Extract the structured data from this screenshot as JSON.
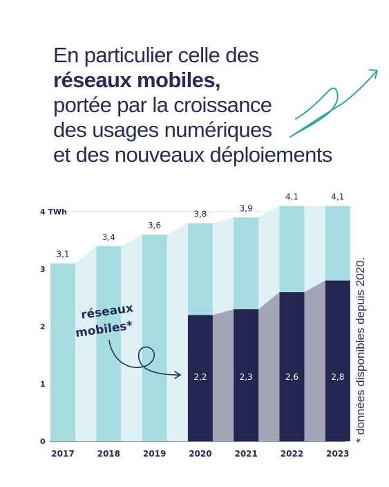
{
  "heading": {
    "line1": "En particulier celle des",
    "line2": "réseaux mobiles,",
    "line3": "portée par la croissance",
    "line4": "des usages numériques",
    "line5": "et des nouveaux déploiements"
  },
  "annotation": {
    "line1": "réseaux",
    "line2": "mobiles*"
  },
  "footnote": "* données disponibles depuis 2020.",
  "colors": {
    "total_bar": "#a7dde0",
    "total_area": "#dff1f4",
    "mobile_bar": "#232651",
    "mobile_area": "#a5a5b8",
    "text": "#262b5a",
    "accent_arrow": "#2aa3a3"
  },
  "chart_data": {
    "type": "bar",
    "title": "",
    "xlabel": "",
    "ylabel": "",
    "ylim": [
      0,
      4
    ],
    "yticks": [
      "0",
      "1",
      "2",
      "3",
      "4 TWh"
    ],
    "categories": [
      "2017",
      "2018",
      "2019",
      "2020",
      "2021",
      "2022",
      "2023"
    ],
    "series": [
      {
        "values": [
          3.1,
          3.4,
          3.6,
          3.8,
          3.9,
          4.1,
          4.1
        ],
        "labels": [
          "3,1",
          "3,4",
          "3,6",
          "3,8",
          "3,9",
          "4,1",
          "4,1"
        ]
      },
      {
        "name": "réseaux mobiles*",
        "values": [
          null,
          null,
          null,
          2.2,
          2.3,
          2.6,
          2.8
        ],
        "labels": [
          "",
          "",
          "",
          "2,2",
          "2,3",
          "2,6",
          "2,8"
        ]
      }
    ],
    "grid": true,
    "legend": "annotation"
  }
}
